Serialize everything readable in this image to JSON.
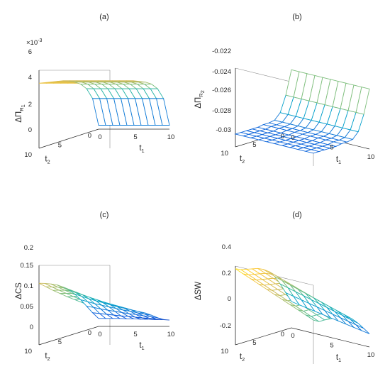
{
  "chart_data": [
    {
      "type": "surface",
      "panel_label": "(a)",
      "zlabel": "ΔΠ",
      "zlabel_sub": "R",
      "zlabel_subsub": "1",
      "xlabel": "t",
      "xlabel_sub": "1",
      "ylabel": "t",
      "ylabel_sub": "2",
      "z_multiplier": "×10",
      "z_multiplier_exp": "-3",
      "x_ticks": [
        "0",
        "5",
        "10"
      ],
      "y_ticks": [
        "0",
        "5",
        "10"
      ],
      "z_ticks": [
        "0",
        "2",
        "4",
        "6"
      ],
      "xlim": [
        0,
        10
      ],
      "ylim": [
        0,
        10
      ],
      "zlim": [
        0,
        6
      ],
      "colormap": [
        "#352a87",
        "#0f5cdd",
        "#1481d6",
        "#06a4ca",
        "#2eb7a4",
        "#87bf77",
        "#d1bb59",
        "#fec832",
        "#f9fb0e"
      ],
      "grid_size": 11,
      "x": [
        0,
        1,
        2,
        3,
        4,
        5,
        6,
        7,
        8,
        9,
        10
      ],
      "y": [
        0,
        1,
        2,
        3,
        4,
        5,
        6,
        7,
        8,
        9,
        10
      ],
      "z_note": "z[i][j] at x = x[j], y = y[i]; values in units of 1e-3",
      "z": [
        [
          0.3,
          0.3,
          0.3,
          0.3,
          0.3,
          0.3,
          0.3,
          0.3,
          0.3,
          0.3,
          0.3
        ],
        [
          2.5,
          2.5,
          2.5,
          2.5,
          2.5,
          2.5,
          2.5,
          2.5,
          2.5,
          2.5,
          2.5
        ],
        [
          3.4,
          3.4,
          3.4,
          3.4,
          3.4,
          3.4,
          3.4,
          3.4,
          3.4,
          3.4,
          3.4
        ],
        [
          3.9,
          3.9,
          3.9,
          3.9,
          3.9,
          3.9,
          3.9,
          3.9,
          3.9,
          3.9,
          3.9
        ],
        [
          4.2,
          4.2,
          4.2,
          4.2,
          4.2,
          4.2,
          4.2,
          4.2,
          4.2,
          4.2,
          4.2
        ],
        [
          4.4,
          4.4,
          4.4,
          4.4,
          4.4,
          4.4,
          4.4,
          4.4,
          4.4,
          4.4,
          4.4
        ],
        [
          4.6,
          4.6,
          4.6,
          4.6,
          4.6,
          4.6,
          4.6,
          4.6,
          4.6,
          4.6,
          4.6
        ],
        [
          4.7,
          4.7,
          4.7,
          4.7,
          4.7,
          4.7,
          4.7,
          4.7,
          4.7,
          4.7,
          4.7
        ],
        [
          4.8,
          4.8,
          4.8,
          4.8,
          4.8,
          4.8,
          4.8,
          4.8,
          4.8,
          4.8,
          4.8
        ],
        [
          4.9,
          4.9,
          4.9,
          4.9,
          4.9,
          4.9,
          4.9,
          4.9,
          4.9,
          4.9,
          4.9
        ],
        [
          5.0,
          5.0,
          5.0,
          5.0,
          5.0,
          5.0,
          5.0,
          5.0,
          5.0,
          5.0,
          5.0
        ]
      ]
    },
    {
      "type": "surface",
      "panel_label": "(b)",
      "zlabel": "ΔΠ",
      "zlabel_sub": "R",
      "zlabel_subsub": "2",
      "xlabel": "t",
      "xlabel_sub": "1",
      "ylabel": "t",
      "ylabel_sub": "2",
      "x_ticks": [
        "0",
        "5",
        "10"
      ],
      "y_ticks": [
        "0",
        "5",
        "10"
      ],
      "z_ticks": [
        "-0.03",
        "-0.028",
        "-0.026",
        "-0.024",
        "-0.022"
      ],
      "xlim": [
        0,
        10
      ],
      "ylim": [
        0,
        10
      ],
      "zlim": [
        -0.03,
        -0.022
      ],
      "colormap": [
        "#352a87",
        "#0f5cdd",
        "#1481d6",
        "#06a4ca",
        "#2eb7a4",
        "#87bf77",
        "#d1bb59",
        "#fec832",
        "#f9fb0e"
      ],
      "grid_size": 11,
      "x": [
        0,
        1,
        2,
        3,
        4,
        5,
        6,
        7,
        8,
        9,
        10
      ],
      "y": [
        0,
        1,
        2,
        3,
        4,
        5,
        6,
        7,
        8,
        9,
        10
      ],
      "z_note": "z[i][j] at x = x[j], y = y[i]",
      "z": [
        [
          -0.0239,
          -0.0239,
          -0.0239,
          -0.0239,
          -0.0239,
          -0.0239,
          -0.0239,
          -0.0239,
          -0.0239,
          -0.0239,
          -0.0239
        ],
        [
          -0.0263,
          -0.0263,
          -0.0263,
          -0.0263,
          -0.0263,
          -0.0263,
          -0.0263,
          -0.0263,
          -0.0263,
          -0.0263,
          -0.0263
        ],
        [
          -0.0279,
          -0.0279,
          -0.0279,
          -0.0279,
          -0.0279,
          -0.0279,
          -0.0279,
          -0.0279,
          -0.0279,
          -0.0279,
          -0.0279
        ],
        [
          -0.0285,
          -0.0285,
          -0.0285,
          -0.0285,
          -0.0285,
          -0.0285,
          -0.0285,
          -0.0285,
          -0.0285,
          -0.0285,
          -0.0285
        ],
        [
          -0.0286,
          -0.0286,
          -0.0286,
          -0.0286,
          -0.0286,
          -0.0286,
          -0.0286,
          -0.0286,
          -0.0286,
          -0.0286,
          -0.0286
        ],
        [
          -0.0286,
          -0.0286,
          -0.0286,
          -0.0286,
          -0.0286,
          -0.0286,
          -0.0286,
          -0.0286,
          -0.0286,
          -0.0286,
          -0.0286
        ],
        [
          -0.0287,
          -0.0287,
          -0.0287,
          -0.0287,
          -0.0287,
          -0.0287,
          -0.0287,
          -0.0287,
          -0.0287,
          -0.0287,
          -0.0287
        ],
        [
          -0.0287,
          -0.0287,
          -0.0287,
          -0.0287,
          -0.0287,
          -0.0287,
          -0.0287,
          -0.0287,
          -0.0287,
          -0.0287,
          -0.0287
        ],
        [
          -0.0287,
          -0.0287,
          -0.0287,
          -0.0287,
          -0.0287,
          -0.0287,
          -0.0287,
          -0.0287,
          -0.0287,
          -0.0287,
          -0.0287
        ],
        [
          -0.0287,
          -0.0287,
          -0.0287,
          -0.0287,
          -0.0287,
          -0.0287,
          -0.0287,
          -0.0287,
          -0.0287,
          -0.0287,
          -0.0287
        ],
        [
          -0.0287,
          -0.0287,
          -0.0287,
          -0.0287,
          -0.0287,
          -0.0287,
          -0.0287,
          -0.0287,
          -0.0287,
          -0.0287,
          -0.0287
        ]
      ]
    },
    {
      "type": "surface",
      "panel_label": "(c)",
      "zlabel": "ΔCS",
      "xlabel": "t",
      "xlabel_sub": "1",
      "ylabel": "t",
      "ylabel_sub": "2",
      "x_ticks": [
        "0",
        "5",
        "10"
      ],
      "y_ticks": [
        "0",
        "5",
        "10"
      ],
      "z_ticks": [
        "0",
        "0.05",
        "0.1",
        "0.15",
        "0.2"
      ],
      "xlim": [
        0,
        10
      ],
      "ylim": [
        0,
        10
      ],
      "zlim": [
        0,
        0.2
      ],
      "colormap": [
        "#352a87",
        "#0f5cdd",
        "#1481d6",
        "#06a4ca",
        "#2eb7a4",
        "#87bf77",
        "#d1bb59",
        "#fec832",
        "#f9fb0e"
      ],
      "grid_size": 11,
      "x": [
        0,
        1,
        2,
        3,
        4,
        5,
        6,
        7,
        8,
        9,
        10
      ],
      "y": [
        0,
        1,
        2,
        3,
        4,
        5,
        6,
        7,
        8,
        9,
        10
      ],
      "z_note": "z[i][j] at x = x[j], y = y[i]",
      "z": [
        [
          0.02,
          0.02,
          0.02,
          0.02,
          0.019,
          0.019,
          0.018,
          0.018,
          0.017,
          0.017,
          0.016
        ],
        [
          0.039,
          0.037,
          0.035,
          0.033,
          0.031,
          0.03,
          0.028,
          0.026,
          0.025,
          0.023,
          0.022
        ],
        [
          0.06,
          0.057,
          0.053,
          0.05,
          0.047,
          0.044,
          0.041,
          0.039,
          0.036,
          0.034,
          0.031
        ],
        [
          0.081,
          0.076,
          0.071,
          0.067,
          0.063,
          0.059,
          0.055,
          0.052,
          0.048,
          0.045,
          0.042
        ],
        [
          0.1,
          0.094,
          0.088,
          0.083,
          0.078,
          0.073,
          0.068,
          0.064,
          0.06,
          0.056,
          0.052
        ],
        [
          0.115,
          0.108,
          0.102,
          0.096,
          0.09,
          0.084,
          0.079,
          0.074,
          0.069,
          0.064,
          0.06
        ],
        [
          0.127,
          0.12,
          0.113,
          0.106,
          0.099,
          0.093,
          0.087,
          0.082,
          0.076,
          0.071,
          0.067
        ],
        [
          0.137,
          0.129,
          0.121,
          0.114,
          0.107,
          0.1,
          0.094,
          0.088,
          0.082,
          0.077,
          0.072
        ],
        [
          0.144,
          0.136,
          0.128,
          0.12,
          0.113,
          0.106,
          0.099,
          0.093,
          0.087,
          0.081,
          0.076
        ],
        [
          0.15,
          0.141,
          0.133,
          0.125,
          0.117,
          0.11,
          0.103,
          0.097,
          0.09,
          0.085,
          0.079
        ],
        [
          0.155,
          0.146,
          0.137,
          0.129,
          0.121,
          0.114,
          0.107,
          0.1,
          0.093,
          0.087,
          0.082
        ]
      ]
    },
    {
      "type": "surface",
      "panel_label": "(d)",
      "zlabel": "ΔSW",
      "xlabel": "t",
      "xlabel_sub": "1",
      "ylabel": "t",
      "ylabel_sub": "2",
      "x_ticks": [
        "0",
        "5",
        "10"
      ],
      "y_ticks": [
        "0",
        "5",
        "10"
      ],
      "z_ticks": [
        "-0.2",
        "0",
        "0.2",
        "0.4"
      ],
      "xlim": [
        0,
        10
      ],
      "ylim": [
        0,
        10
      ],
      "zlim": [
        -0.2,
        0.4
      ],
      "colormap": [
        "#352a87",
        "#0f5cdd",
        "#1481d6",
        "#06a4ca",
        "#2eb7a4",
        "#87bf77",
        "#d1bb59",
        "#fec832",
        "#f9fb0e"
      ],
      "grid_size": 11,
      "x": [
        0,
        1,
        2,
        3,
        4,
        5,
        6,
        7,
        8,
        9,
        10
      ],
      "y": [
        0,
        1,
        2,
        3,
        4,
        5,
        6,
        7,
        8,
        9,
        10
      ],
      "z_note": "z[i][j] at x = x[j], y = y[i]",
      "z": [
        [
          0.0,
          -0.01,
          -0.02,
          -0.03,
          -0.04,
          -0.05,
          -0.06,
          -0.07,
          -0.08,
          -0.09,
          -0.1
        ],
        [
          0.08,
          0.067,
          0.055,
          0.042,
          0.03,
          0.017,
          0.004,
          -0.008,
          -0.021,
          -0.033,
          -0.046
        ],
        [
          0.16,
          0.145,
          0.129,
          0.114,
          0.098,
          0.083,
          0.068,
          0.052,
          0.037,
          0.021,
          0.006
        ],
        [
          0.23,
          0.212,
          0.194,
          0.176,
          0.158,
          0.14,
          0.122,
          0.104,
          0.086,
          0.068,
          0.05
        ],
        [
          0.28,
          0.26,
          0.239,
          0.219,
          0.198,
          0.178,
          0.158,
          0.137,
          0.117,
          0.096,
          0.076
        ],
        [
          0.31,
          0.288,
          0.266,
          0.244,
          0.222,
          0.2,
          0.178,
          0.156,
          0.134,
          0.112,
          0.09
        ],
        [
          0.33,
          0.307,
          0.284,
          0.261,
          0.238,
          0.215,
          0.192,
          0.169,
          0.146,
          0.123,
          0.1
        ],
        [
          0.34,
          0.317,
          0.293,
          0.27,
          0.246,
          0.223,
          0.199,
          0.176,
          0.152,
          0.129,
          0.105
        ],
        [
          0.35,
          0.326,
          0.302,
          0.278,
          0.254,
          0.23,
          0.206,
          0.182,
          0.158,
          0.134,
          0.11
        ],
        [
          0.36,
          0.335,
          0.31,
          0.285,
          0.26,
          0.235,
          0.21,
          0.185,
          0.16,
          0.135,
          0.11
        ],
        [
          0.38,
          0.355,
          0.331,
          0.306,
          0.282,
          0.257,
          0.233,
          0.208,
          0.184,
          0.159,
          0.135
        ]
      ]
    }
  ]
}
